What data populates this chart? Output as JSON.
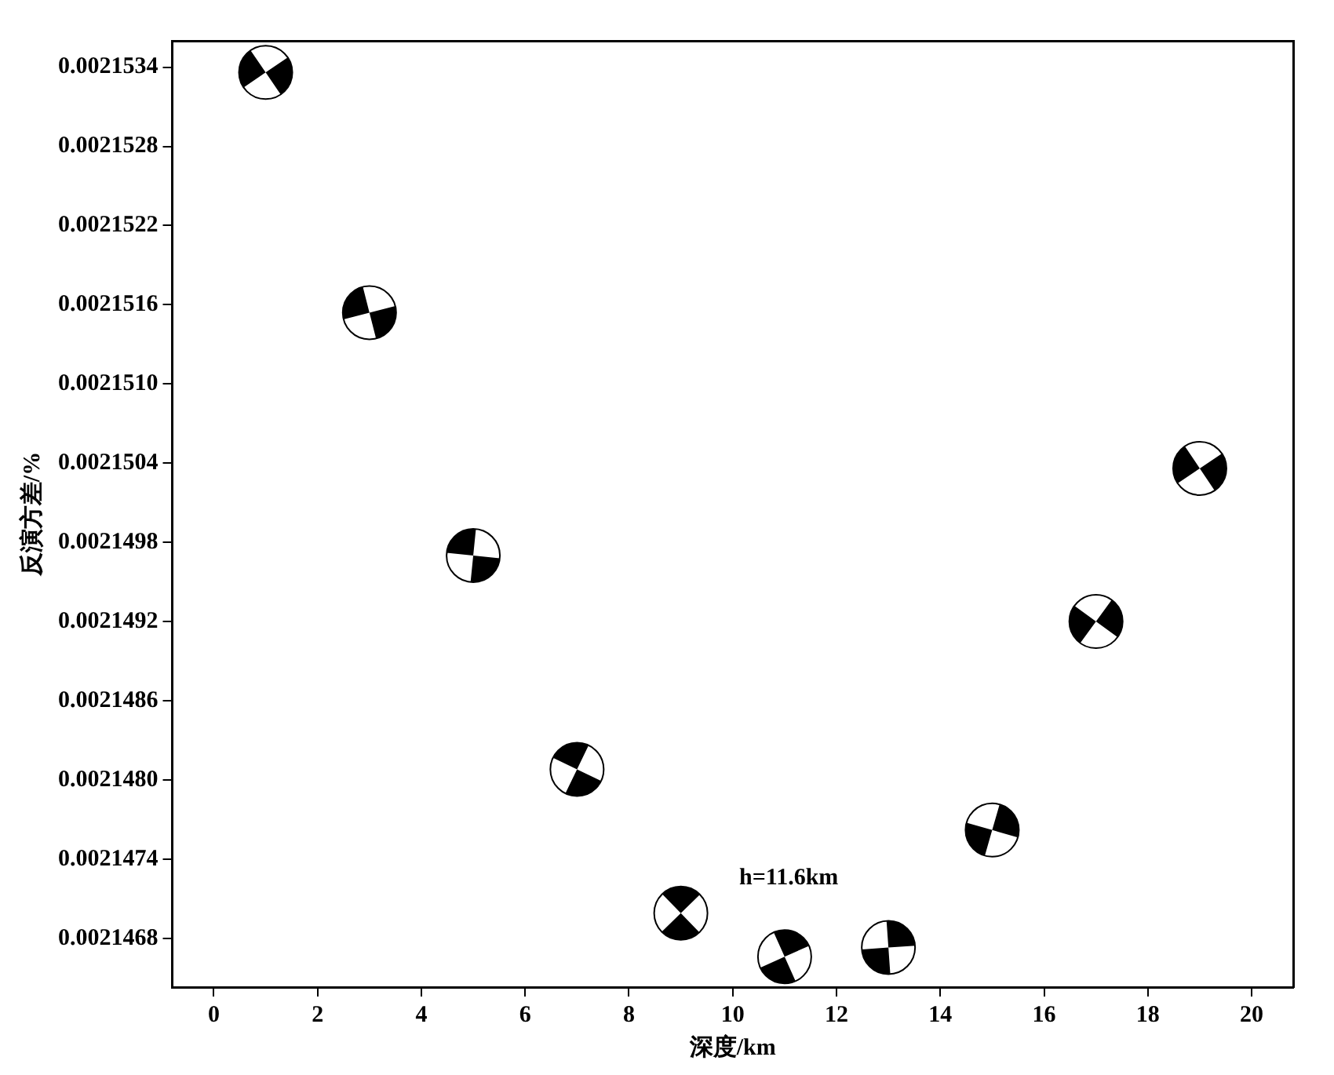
{
  "chart_data": {
    "type": "scatter",
    "xlabel": "深度/km",
    "ylabel": "反演方差/%",
    "x": [
      1,
      3,
      5,
      7,
      9,
      11,
      13,
      15,
      17,
      19
    ],
    "values": [
      0.00215336,
      0.00215154,
      0.0021497,
      0.00214808,
      0.00214699,
      0.00214666,
      0.00214673,
      0.00214762,
      0.0021492,
      0.00215036
    ],
    "color": "#000000",
    "marker": "circle",
    "grid": false,
    "legend": false,
    "xlim": [
      -0.8,
      20.8
    ],
    "xticks": [
      0,
      2,
      4,
      6,
      8,
      10,
      12,
      14,
      16,
      18,
      20
    ],
    "ylim": [
      0.00214643,
      0.0021536
    ],
    "yticks": [
      0.0021468,
      0.0021474,
      {
        "value": 0.002148,
        "label": "0.0021480"
      },
      0.0021486,
      0.0021492,
      0.0021498,
      0.0021504,
      {
        "value": 0.002151,
        "label": "0.0021510"
      },
      0.0021516,
      0.0021522,
      0.0021528,
      0.0021534
    ],
    "annotations": [
      "h=11.6km"
    ]
  }
}
